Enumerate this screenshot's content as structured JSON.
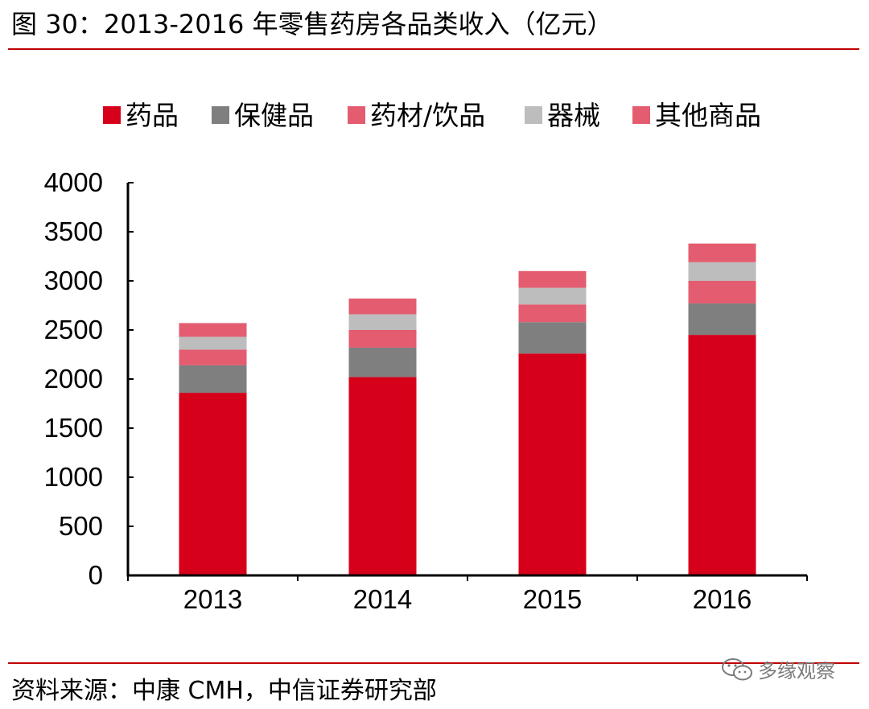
{
  "figure": {
    "title": "图 30：2013-2016 年零售药房各品类收入（亿元）",
    "source": "资料来源：中康 CMH，中信证券研究部",
    "watermark": "多缘观察"
  },
  "colors": {
    "rule": "#c00000",
    "axis": "#000000",
    "drugs": "#d7001b",
    "health_products": "#7f7f7f",
    "herbs_drinks": "#e45c70",
    "devices": "#bdbdbd",
    "other": "#e45c70"
  },
  "chart_data": {
    "type": "bar",
    "stacked": true,
    "title": "",
    "xlabel": "",
    "ylabel": "",
    "categories": [
      "2013",
      "2014",
      "2015",
      "2016"
    ],
    "ylim": [
      0,
      4000
    ],
    "yticks": [
      0,
      500,
      1000,
      1500,
      2000,
      2500,
      3000,
      3500,
      4000
    ],
    "ytick_labels": [
      "0",
      "500",
      "1000",
      "1500",
      "2000",
      "2500",
      "3000",
      "3500",
      "4000"
    ],
    "legend_position": "top",
    "grid": false,
    "series": [
      {
        "name": "药品",
        "color_key": "drugs",
        "values": [
          1860,
          2020,
          2260,
          2450
        ]
      },
      {
        "name": "保健品",
        "color_key": "health_products",
        "values": [
          280,
          300,
          320,
          320
        ]
      },
      {
        "name": "药材/饮品",
        "color_key": "herbs_drinks",
        "values": [
          160,
          180,
          180,
          230
        ]
      },
      {
        "name": "器械",
        "color_key": "devices",
        "values": [
          130,
          160,
          170,
          190
        ]
      },
      {
        "name": "其他商品",
        "color_key": "other",
        "values": [
          140,
          160,
          170,
          190
        ]
      }
    ]
  }
}
